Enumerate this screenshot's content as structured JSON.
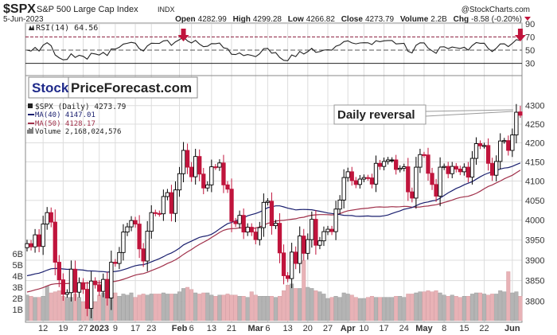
{
  "header": {
    "symbol": "$SPX",
    "name": "S&P 500 Large Cap Index",
    "exchange": "INDX",
    "copyright": "@StockCharts.com",
    "date": "5-Jun-2023",
    "open_label": "Open",
    "open": "4282.99",
    "high_label": "High",
    "high": "4299.28",
    "low_label": "Low",
    "low": "4266.82",
    "close_label": "Close",
    "close": "4273.79",
    "volume_label": "Volume",
    "volume": "2.2B",
    "chg_label": "Chg",
    "chg": "-8.58 (-0.20%)"
  },
  "watermark": {
    "part1": "Stock",
    "part2": "PriceForecast.com"
  },
  "annotation": "Daily reversal",
  "colors": {
    "up": "#000000",
    "down": "#c0143c",
    "ma40": "#1a1f6e",
    "ma50": "#a0304a",
    "vol_up": "#b4b4b4",
    "vol_down": "#e8b2b6",
    "arrow": "#c0143c"
  },
  "chart_data": {
    "type": "candlestick",
    "title": "$SPX S&P 500 Large Cap Index INDX",
    "rsi": {
      "label": "RSI(14) 64.56",
      "levels": [
        90,
        70,
        50,
        30
      ],
      "ylim": [
        0,
        100
      ]
    },
    "legend": {
      "price": "$SPX (Daily) 4273.79",
      "ma40": "MA(40) 4147.01",
      "ma50": "MA(50) 4128.17",
      "volume": "Volume 2,168,024,576"
    },
    "price_ticks": [
      4300,
      4250,
      4200,
      4150,
      4100,
      4050,
      4000,
      3950,
      3900,
      3850,
      3800
    ],
    "volume_ticks": [
      "6B",
      "5B",
      "4B",
      "3B",
      "2B",
      "1B"
    ],
    "x_ticks": [
      {
        "label": "12",
        "i": 4
      },
      {
        "label": "19",
        "i": 9
      },
      {
        "label": "27",
        "i": 14
      },
      {
        "label": "2023",
        "i": 18,
        "bold": true
      },
      {
        "label": "9",
        "i": 22
      },
      {
        "label": "17",
        "i": 27
      },
      {
        "label": "23",
        "i": 31
      },
      {
        "label": "Feb",
        "i": 38,
        "bold": true
      },
      {
        "label": "6",
        "i": 41
      },
      {
        "label": "13",
        "i": 46
      },
      {
        "label": "21",
        "i": 51
      },
      {
        "label": "Mar",
        "i": 57,
        "bold": true
      },
      {
        "label": "6",
        "i": 60
      },
      {
        "label": "13",
        "i": 65
      },
      {
        "label": "20",
        "i": 70
      },
      {
        "label": "27",
        "i": 75
      },
      {
        "label": "Apr",
        "i": 80,
        "bold": true
      },
      {
        "label": "10",
        "i": 84
      },
      {
        "label": "17",
        "i": 89
      },
      {
        "label": "24",
        "i": 94
      },
      {
        "label": "May",
        "i": 99,
        "bold": true
      },
      {
        "label": "8",
        "i": 104
      },
      {
        "label": "15",
        "i": 109
      },
      {
        "label": "22",
        "i": 114
      },
      {
        "label": "Jun",
        "i": 121,
        "bold": true
      }
    ],
    "ma_seed": {
      "ma40": 3860,
      "ma50": 3820
    },
    "close": [
      3941,
      3933,
      3963,
      3934,
      3990,
      4019,
      3995,
      3895,
      3852,
      3817,
      3821,
      3878,
      3822,
      3845,
      3829,
      3783,
      3849,
      3840,
      3824,
      3853,
      3808,
      3895,
      3892,
      3919,
      3970,
      3983,
      3999,
      3990,
      3928,
      3898,
      3972,
      4019,
      4017,
      4016,
      4060,
      4070,
      4017,
      4077,
      4119,
      4180,
      4136,
      4111,
      4164,
      4118,
      4082,
      4090,
      4137,
      4136,
      4147,
      4090,
      4079,
      3997,
      3991,
      4012,
      3970,
      3982,
      3970,
      3951,
      3981,
      4045,
      4048,
      3986,
      3992,
      3918,
      3862,
      3855,
      3920,
      3892,
      3960,
      3917,
      3951,
      4002,
      3937,
      3948,
      3971,
      3977,
      3971,
      4028,
      4051,
      4109,
      4124,
      4101,
      4091,
      4105,
      4109,
      4108,
      4092,
      4146,
      4138,
      4151,
      4155,
      4155,
      4130,
      4133,
      4137,
      4072,
      4056,
      4136,
      4169,
      4168,
      4120,
      4091,
      4061,
      4136,
      4138,
      4119,
      4138,
      4131,
      4124,
      4136,
      4110,
      4159,
      4198,
      4192,
      4193,
      4146,
      4115,
      4151,
      4205,
      4206,
      4180,
      4221,
      4282,
      4273.79
    ],
    "volume_billions": [
      2.3,
      2.2,
      2.1,
      2.1,
      2.2,
      3.1,
      2.5,
      2.6,
      2.7,
      2.2,
      2.1,
      2.1,
      2.4,
      2.1,
      1.7,
      2.2,
      2.0,
      1.7,
      2.3,
      2.5,
      2.1,
      2.5,
      2.5,
      2.2,
      2.4,
      2.3,
      2.5,
      2.1,
      2.3,
      2.4,
      2.3,
      2.4,
      2.4,
      2.4,
      2.5,
      2.4,
      2.4,
      2.4,
      2.6,
      2.9,
      3.0,
      2.8,
      2.5,
      2.4,
      2.5,
      2.5,
      2.3,
      2.2,
      2.3,
      2.3,
      2.4,
      2.3,
      2.3,
      2.2,
      2.2,
      2.1,
      2.6,
      2.3,
      2.2,
      2.2,
      2.2,
      2.2,
      2.1,
      2.2,
      2.7,
      3.2,
      3.3,
      2.9,
      2.9,
      5.4,
      3.0,
      2.9,
      2.7,
      2.6,
      2.4,
      2.0,
      2.1,
      2.2,
      2.1,
      2.5,
      2.4,
      2.3,
      2.1,
      2.0,
      2.0,
      2.1,
      2.2,
      2.1,
      2.1,
      2.1,
      2.1,
      2.1,
      2.2,
      2.2,
      2.1,
      2.4,
      2.4,
      2.5,
      2.6,
      2.6,
      2.7,
      2.6,
      2.7,
      2.5,
      2.3,
      2.2,
      2.3,
      2.2,
      2.1,
      2.2,
      2.2,
      2.4,
      2.5,
      2.5,
      2.4,
      2.3,
      2.4,
      2.4,
      2.7,
      2.6,
      4.4,
      2.5,
      2.6,
      2.2
    ],
    "last_bar": {
      "open": 4282.99,
      "high": 4299.28,
      "low": 4266.82,
      "close": 4273.79
    },
    "arrows_at_index": [
      39,
      123
    ]
  }
}
